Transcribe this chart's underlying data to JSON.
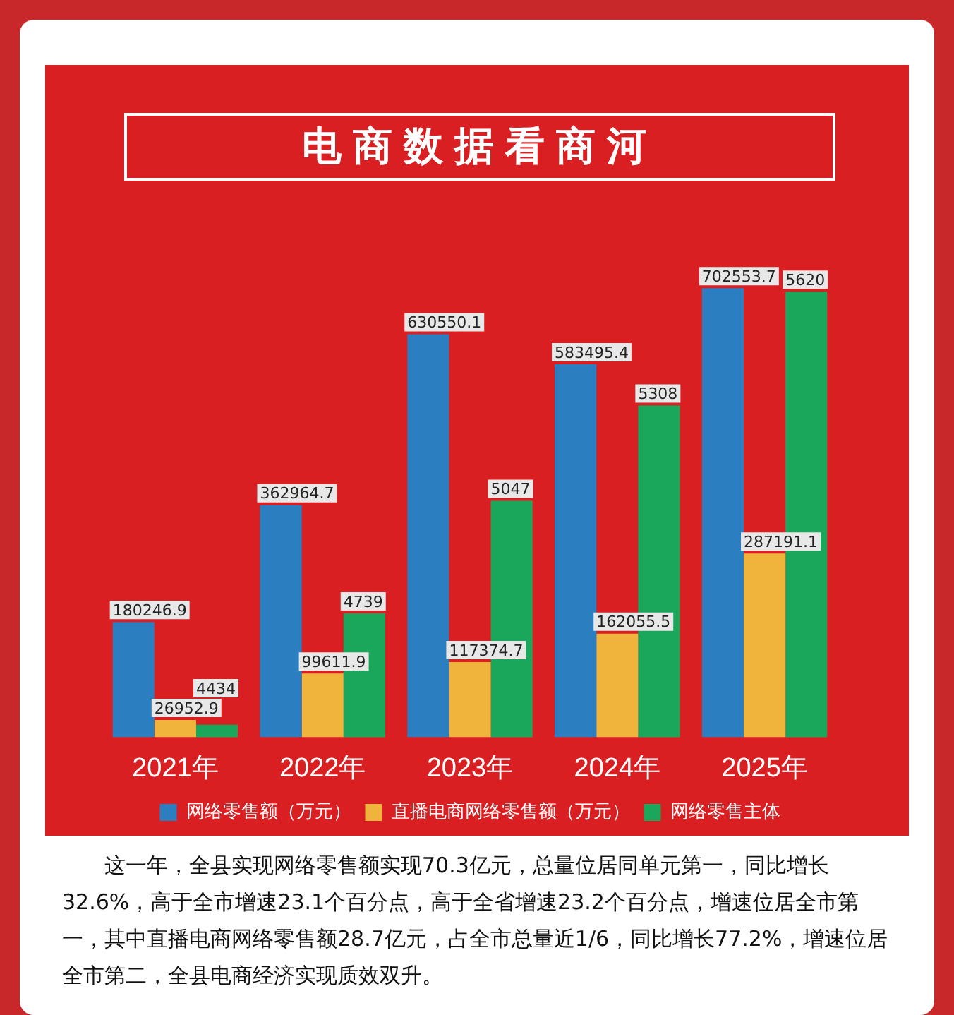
{
  "chart_data": {
    "type": "bar",
    "title": "电商数据看商河",
    "categories": [
      "2021年",
      "2022年",
      "2023年",
      "2024年",
      "2025年"
    ],
    "series": [
      {
        "name": "网络零售额（万元）",
        "color": "#2b7fc1",
        "values": [
          180246.9,
          362964.7,
          630550.1,
          583495.4,
          702553.7
        ]
      },
      {
        "name": "直播电商网络零售额（万元）",
        "color": "#f0b43c",
        "values": [
          26952.9,
          99611.9,
          117374.7,
          162055.5,
          287191.1
        ]
      },
      {
        "name": "网络零售主体",
        "color": "#1aa75c",
        "values": [
          4434,
          4739,
          5047,
          5308,
          5620
        ],
        "axis": "y2"
      }
    ],
    "data_labels": true,
    "legend": "bottom",
    "grid": false,
    "annotations": [
      "这一年，全县实现网络零售额实现70.3亿元，总量位居同单元第一，同比增长32.6%，高于全市增速23.1个百分点，高于全省增速23.2个百分点，增速位居全市第一，其中直播电商网络零售额28.7亿元，占全市总量近1/6，同比增长77.2%，增速位居全市第二，全县电商经济实现质效双升。"
    ]
  }
}
